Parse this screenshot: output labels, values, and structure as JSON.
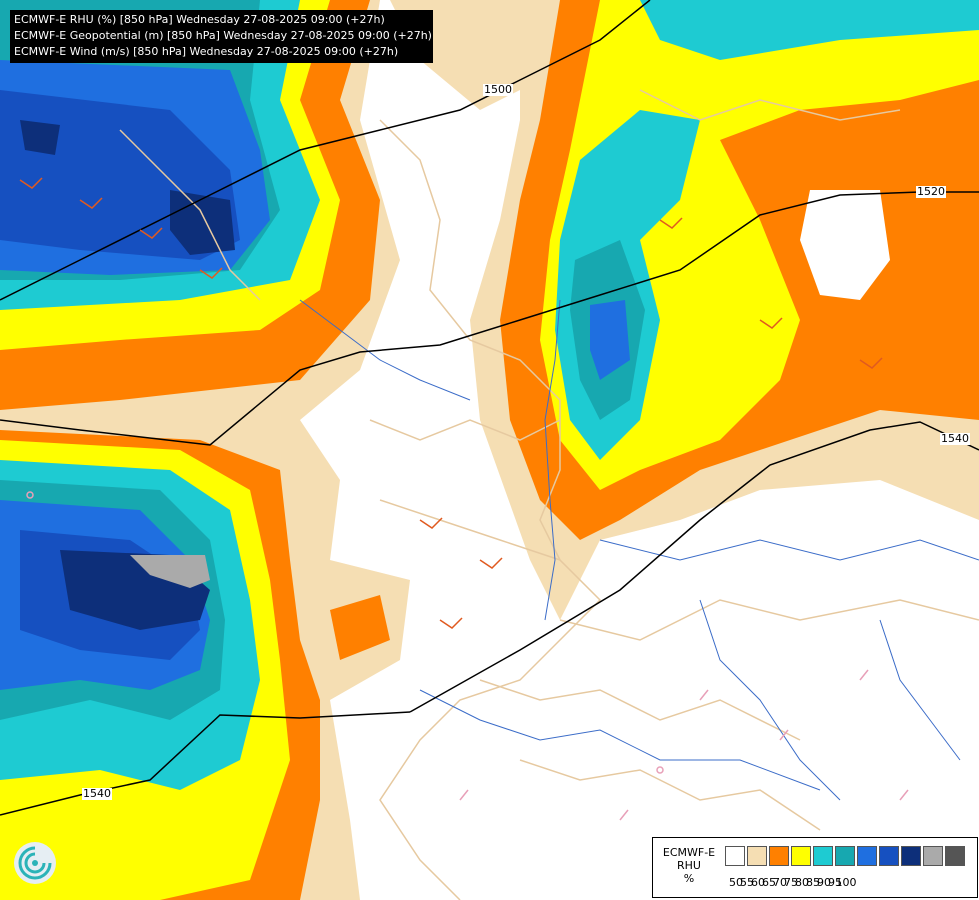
{
  "header": {
    "lines": [
      "ECMWF-E RHU (%) [850 hPa] Wednesday 27-08-2025 09:00 (+27h)",
      "ECMWF-E Geopotential (m) [850 hPa] Wednesday 27-08-2025 09:00 (+27h)",
      "ECMWF-E Wind (m/s) [850 hPa] Wednesday 27-08-2025 09:00 (+27h)"
    ]
  },
  "contours": {
    "labels": [
      "1500",
      "1520",
      "1540",
      "1540"
    ]
  },
  "legend": {
    "title": "ECMWF-E RHU %",
    "title_lines": [
      "ECMWF-E",
      "RHU",
      "%"
    ],
    "ticks": [
      "50",
      "55",
      "60",
      "65",
      "70",
      "75",
      "80",
      "85",
      "90",
      "95",
      "100"
    ],
    "colors": [
      "#ffffff",
      "#f5deb3",
      "#ff8000",
      "#ffff00",
      "#1ecbd2",
      "#17a8b0",
      "#1f6fe0",
      "#1650c0",
      "#0d2f7a",
      "#aaaaaa",
      "#555555"
    ]
  },
  "logo": {
    "icon": "ecmwf-logo-icon"
  }
}
